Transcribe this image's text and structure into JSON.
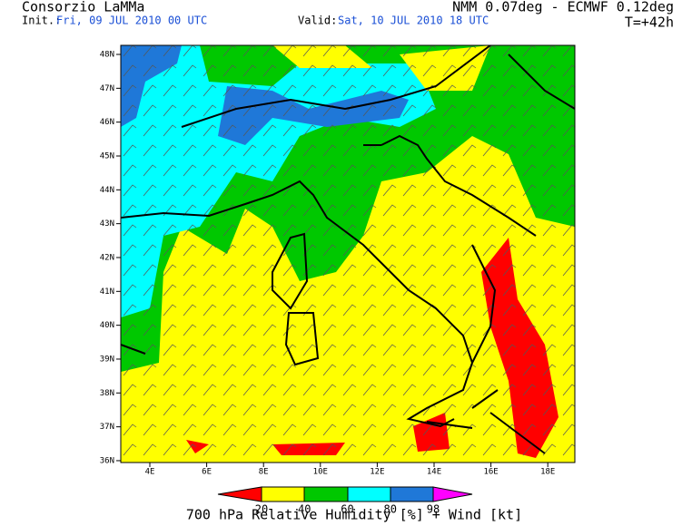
{
  "header": {
    "title_left": "Consorzio LaMMa",
    "title_right": "NMM 0.07deg - ECMWF 0.12deg",
    "init_label": "Init.:",
    "init_value": "Fri, 09 JUL 2010  00 UTC",
    "valid_label": "Valid:",
    "valid_value": "Sat, 10 JUL 2010  18 UTC",
    "lead_time": "T=+42h"
  },
  "map": {
    "lat_labels": [
      "48N",
      "47N",
      "46N",
      "45N",
      "44N",
      "43N",
      "42N",
      "41N",
      "40N",
      "39N",
      "38N",
      "37N",
      "36N"
    ],
    "lon_labels": [
      "4E",
      "6E",
      "8E",
      "10E",
      "12E",
      "14E",
      "16E",
      "18E"
    ]
  },
  "legend": {
    "labels": [
      "20",
      "40",
      "60",
      "80",
      "98"
    ]
  },
  "footer": {
    "title": "700 hPa Relative Humidity [%] + Wind [kt]"
  }
}
